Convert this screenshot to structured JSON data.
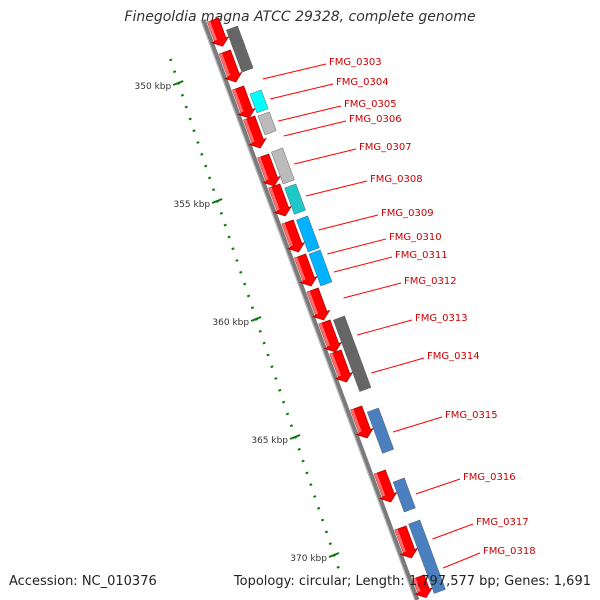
{
  "title": "Finegoldia magna ATCC 29328, complete genome",
  "footer": {
    "accession": "Accession: NC_010376",
    "summary": "Topology: circular; Length: 1,797,577 bp; Genes: 1,691"
  },
  "colors": {
    "backbone": "#7a7a7a",
    "gene_forward": "#ff0000",
    "tick": "#0a7a0a",
    "label": "#cc0000"
  },
  "scale_ticks": [
    {
      "kbp": 350,
      "label": "350 kbp"
    },
    {
      "kbp": 355,
      "label": "355 kbp"
    },
    {
      "kbp": 360,
      "label": "360 kbp"
    },
    {
      "kbp": 365,
      "label": "365 kbp"
    },
    {
      "kbp": 370,
      "label": "370 kbp"
    }
  ],
  "genes": [
    {
      "id": "FMG_0303",
      "cog_color": "#666666"
    },
    {
      "id": "FMG_0304",
      "cog_color": "#666666"
    },
    {
      "id": "FMG_0305",
      "cog_color": "#00ffff"
    },
    {
      "id": "FMG_0306",
      "cog_color": "#bbbbbb"
    },
    {
      "id": "FMG_0307",
      "cog_color": "#bbbbbb"
    },
    {
      "id": "FMG_0308",
      "cog_color": "#1fc8c8"
    },
    {
      "id": "FMG_0309",
      "cog_color": "#00b2ff"
    },
    {
      "id": "FMG_0310",
      "cog_color": "#00b2ff"
    },
    {
      "id": "FMG_0311",
      "cog_color": "#00b2ff"
    },
    {
      "id": "FMG_0312",
      "cog_color": "#ffffff"
    },
    {
      "id": "FMG_0313",
      "cog_color": "#bbbbbb"
    },
    {
      "id": "FMG_0314",
      "cog_color": "#00b2ff"
    },
    {
      "id": "FMG_0315",
      "cog_color": "#666666"
    },
    {
      "id": "FMG_0316",
      "cog_color": "#666666"
    },
    {
      "id": "FMG_0317",
      "cog_color": "#4a7fc0"
    },
    {
      "id": "FMG_0318",
      "cog_color": "#4a7fc0"
    }
  ]
}
